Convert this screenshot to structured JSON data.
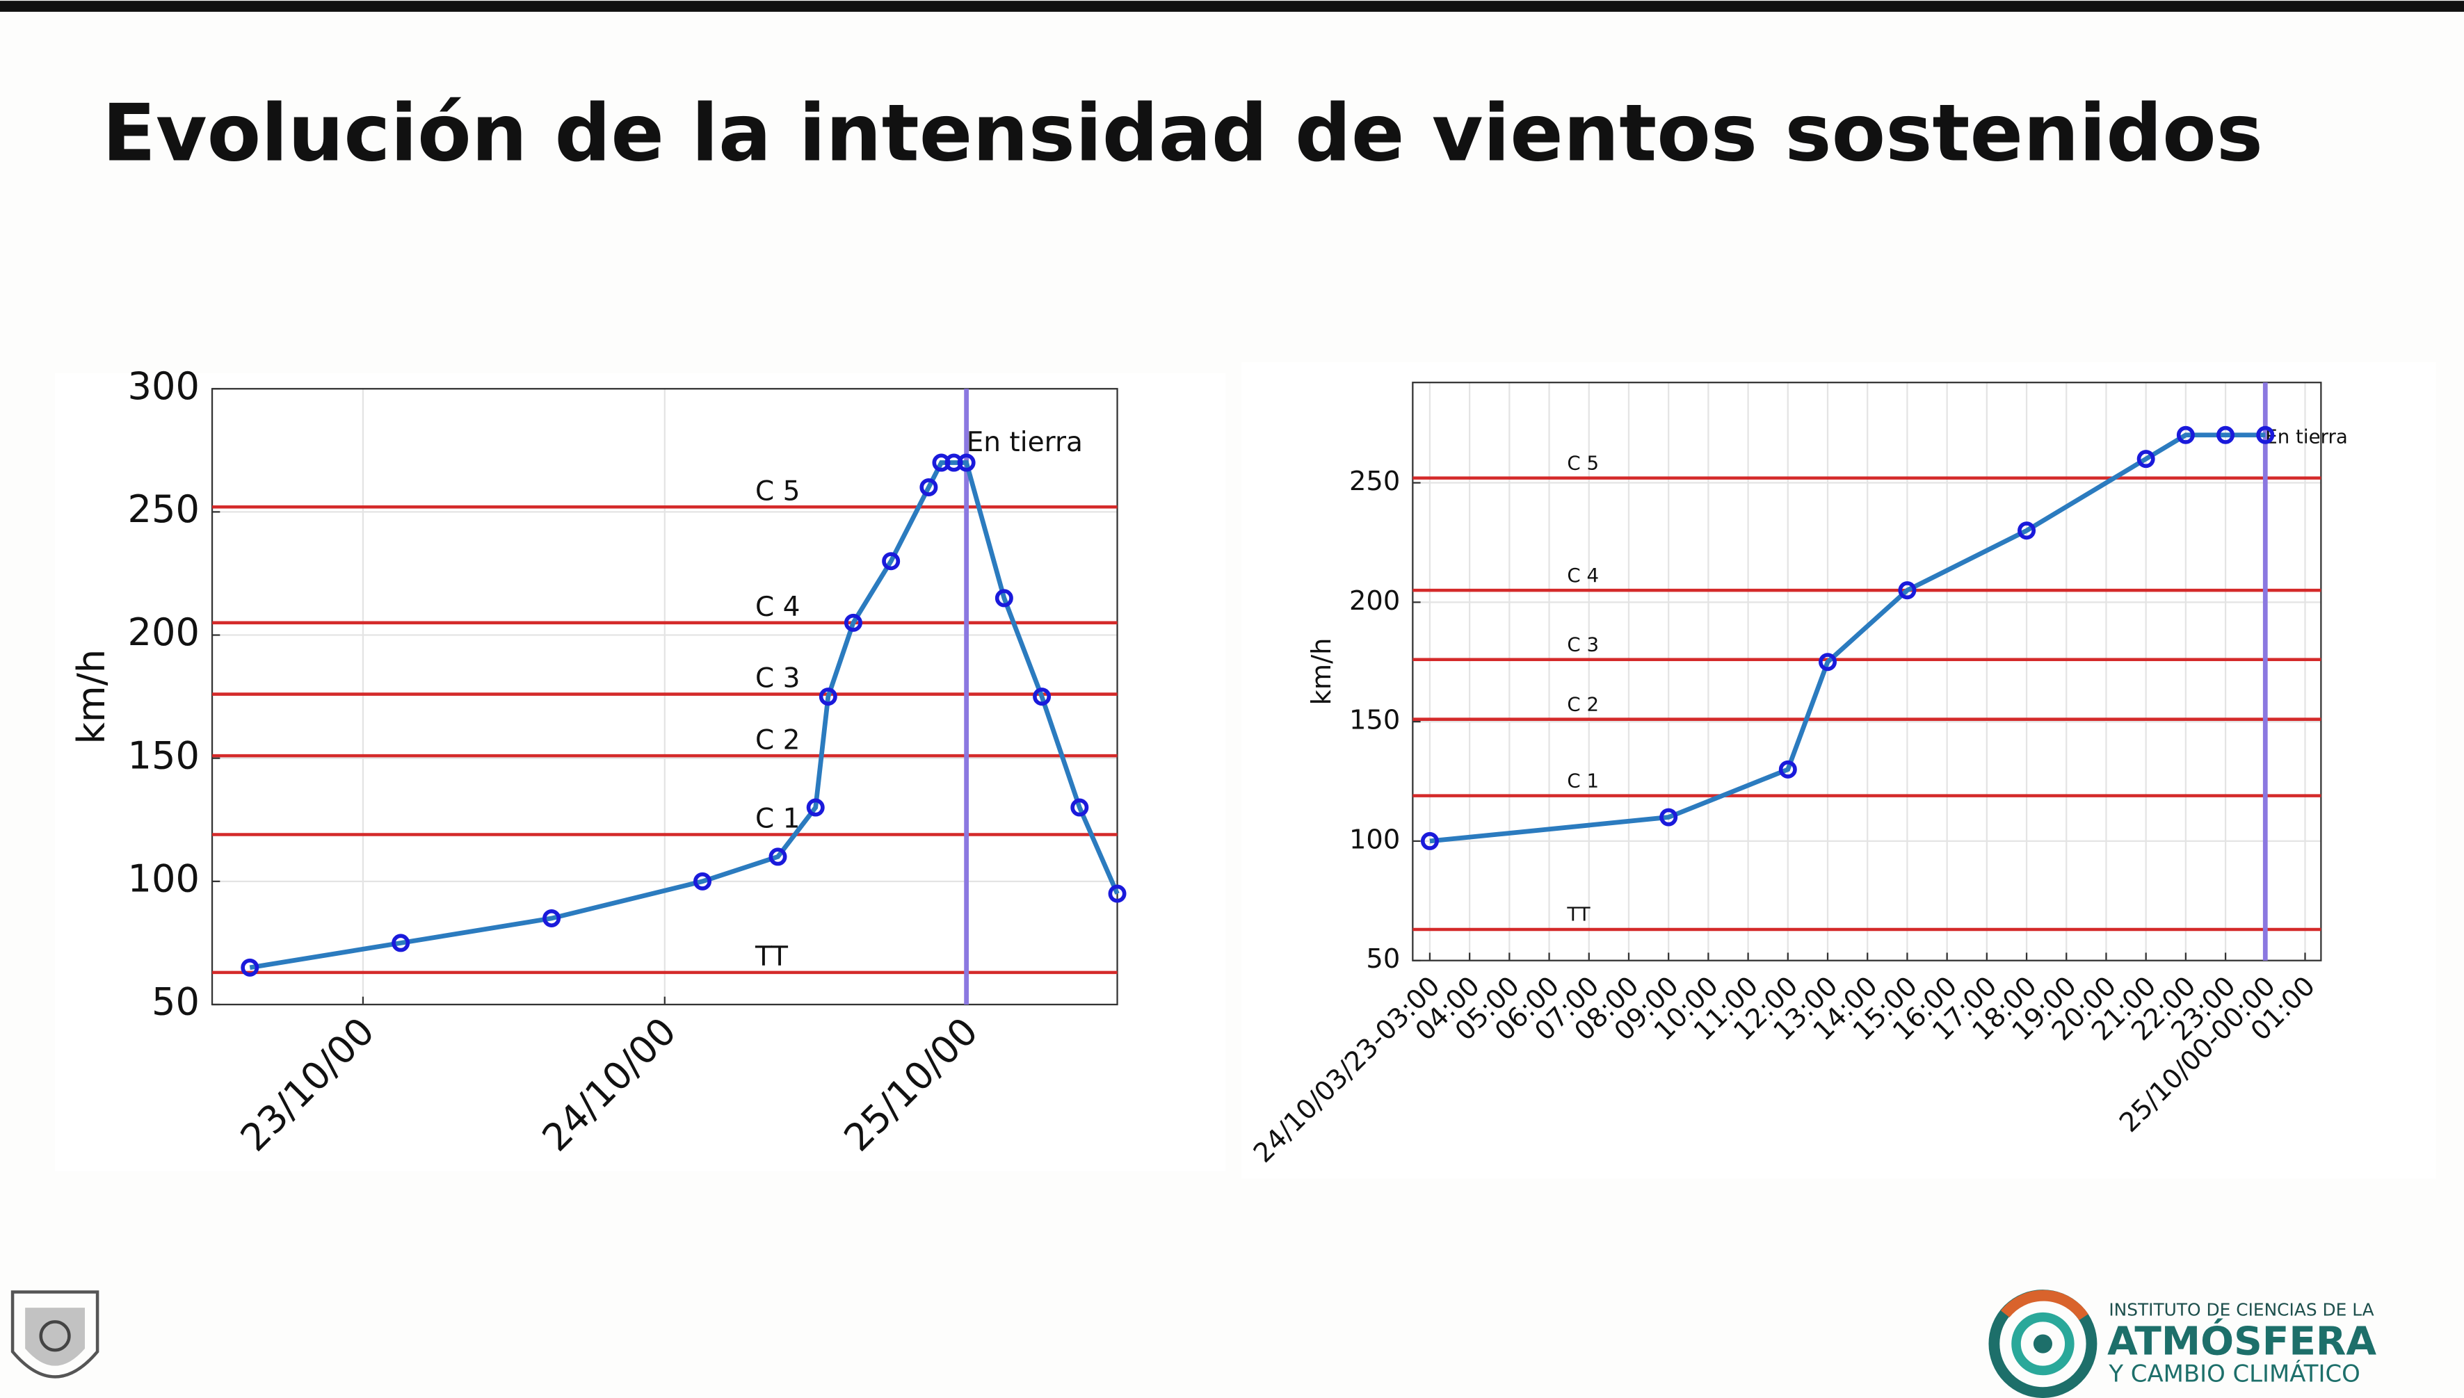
{
  "title": "Evolución de la intensidad de vientos sostenidos",
  "chart_data": [
    {
      "type": "line",
      "ylabel": "km/h",
      "x": [
        "22/10/15",
        "23/10/03",
        "23/10/15",
        "24/10/03",
        "24/10/09",
        "24/10/12",
        "24/10/13",
        "24/10/15",
        "24/10/18",
        "24/10/21",
        "24/10/22",
        "24/10/23",
        "25/10/00",
        "25/10/03",
        "25/10/06",
        "25/10/09",
        "25/10/12"
      ],
      "series": [
        {
          "color": "#2b7bbf",
          "marker_color": "#1a1adb",
          "values": [
            65,
            75,
            85,
            100,
            110,
            130,
            175,
            205,
            230,
            260,
            270,
            270,
            270,
            215,
            175,
            130,
            95
          ]
        }
      ],
      "xlim": [
        "22/10/12",
        "25/10/12"
      ],
      "xticks": [
        "23/10/00",
        "24/10/00",
        "25/10/00"
      ],
      "ylim": [
        50,
        300
      ],
      "yticks": [
        50,
        100,
        150,
        200,
        250,
        300
      ],
      "grid": true,
      "reference_color": "#d42a2a",
      "reference_lines": [
        {
          "label": "TT",
          "value": 63
        },
        {
          "label": "C 1",
          "value": 119
        },
        {
          "label": "C 2",
          "value": 151
        },
        {
          "label": "C 3",
          "value": 176
        },
        {
          "label": "C 4",
          "value": 205
        },
        {
          "label": "C 5",
          "value": 252
        }
      ],
      "marker_line": {
        "x": "25/10/00",
        "label": "En tierra",
        "color": "#8b78e0"
      }
    },
    {
      "type": "line",
      "ylabel": "km/h",
      "categories": [
        "24/10/03/23-03:00",
        "04:00",
        "05:00",
        "06:00",
        "07:00",
        "08:00",
        "09:00",
        "10:00",
        "11:00",
        "12:00",
        "13:00",
        "14:00",
        "15:00",
        "16:00",
        "17:00",
        "18:00",
        "19:00",
        "20:00",
        "21:00",
        "22:00",
        "23:00",
        "25/10/00-00:00",
        "01:00"
      ],
      "x": [
        "24/10/03/23-03:00",
        "09:00",
        "12:00",
        "13:00",
        "15:00",
        "18:00",
        "21:00",
        "22:00",
        "23:00",
        "25/10/00-00:00"
      ],
      "series": [
        {
          "color": "#2b7bbf",
          "marker_color": "#1a1adb",
          "values": [
            100,
            110,
            130,
            175,
            205,
            230,
            260,
            270,
            270,
            270
          ]
        }
      ],
      "ylim": [
        50,
        292
      ],
      "yticks": [
        50,
        100,
        150,
        200,
        250
      ],
      "grid": true,
      "reference_color": "#d42a2a",
      "reference_lines": [
        {
          "label": "TT",
          "value": 63
        },
        {
          "label": "C 1",
          "value": 119
        },
        {
          "label": "C 2",
          "value": 151
        },
        {
          "label": "C 3",
          "value": 176
        },
        {
          "label": "C 4",
          "value": 205
        },
        {
          "label": "C 5",
          "value": 252
        }
      ],
      "marker_line": {
        "x": "25/10/00-00:00",
        "label": "En tierra",
        "color": "#8b78e0"
      }
    }
  ],
  "logo": {
    "line1": "INSTITUTO DE CIENCIAS DE LA",
    "line2": "ATMÓSFERA",
    "line3": "Y CAMBIO CLIMÁTICO"
  }
}
